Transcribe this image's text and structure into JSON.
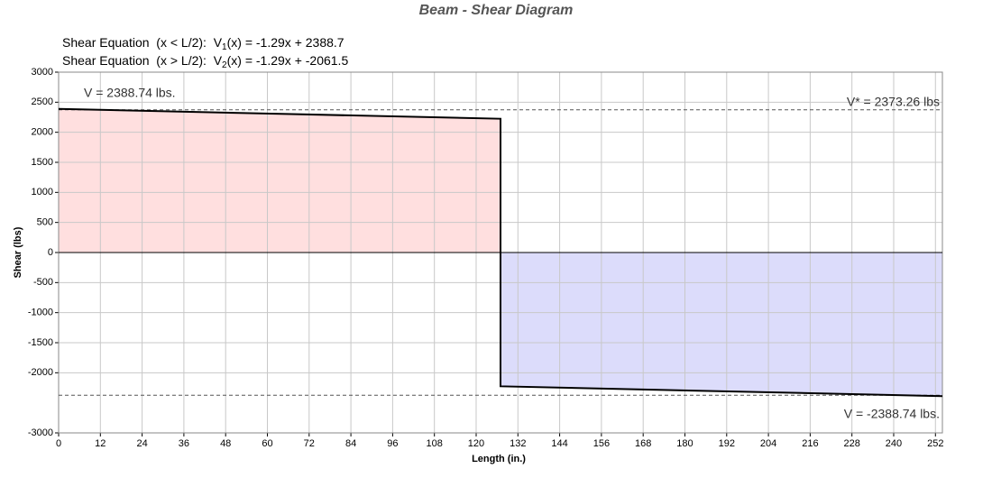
{
  "chart_data": {
    "type": "line",
    "title": "Beam - Shear Diagram",
    "equations": [
      {
        "prefix": "Shear Equation  (x < L/2):  V",
        "sub": "1",
        "suffix": "(x) = -1.29x + 2388.7"
      },
      {
        "prefix": "Shear Equation  (x > L/2):  V",
        "sub": "2",
        "suffix": "(x) = -1.29x + -2061.5"
      }
    ],
    "x_label": "Length (in.)",
    "y_label": "Shear (lbs)",
    "x": [
      0,
      127,
      127,
      254
    ],
    "series": [
      {
        "name": "Shear",
        "color": "#000000",
        "values": [
          2388.74,
          2225,
          -2225,
          -2388.74
        ]
      }
    ],
    "fill_colors": {
      "positive": "#ffdfdf",
      "negative": "#dcdcfb"
    },
    "reference_lines": [
      2373.26,
      -2373.26
    ],
    "annotations": [
      "V = 2388.74 lbs.",
      "V* = 2373.26 lbs",
      "V = -2388.74 lbs."
    ],
    "xlim": [
      0,
      254
    ],
    "ylim": [
      -3000,
      3000
    ],
    "xticks": [
      0,
      12,
      24,
      36,
      48,
      60,
      72,
      84,
      96,
      108,
      120,
      132,
      144,
      156,
      168,
      180,
      192,
      204,
      216,
      228,
      240,
      252
    ],
    "yticks": [
      3000,
      2500,
      2000,
      1500,
      1000,
      500,
      0,
      -500,
      -1000,
      -1500,
      -2000,
      -3000
    ],
    "grid": true
  }
}
